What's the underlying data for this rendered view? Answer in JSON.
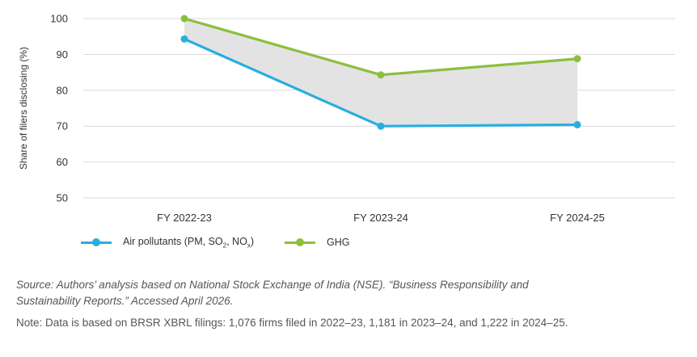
{
  "chart_data": {
    "type": "line",
    "categories": [
      "FY 2022-23",
      "FY 2023-24",
      "FY 2024-25"
    ],
    "series": [
      {
        "name": "Air pollutants (PM, SO2, NOx)",
        "values": [
          94.3,
          70.0,
          70.4
        ],
        "color": "#29aee0"
      },
      {
        "name": "GHG",
        "values": [
          100.0,
          84.3,
          88.8
        ],
        "color": "#8cbf3f"
      }
    ],
    "ylabel": "Share of filers disclosing (%)",
    "xlabel": "",
    "ylim": [
      50,
      100
    ],
    "yticks": [
      "50",
      "60",
      "70",
      "80",
      "90",
      "100"
    ],
    "grid": true,
    "shaded_between_series": true,
    "fill_color": "#e3e3e3",
    "legend_position": "bottom-left"
  },
  "legend": {
    "air": {
      "prefix": "Air pollutants (PM, SO",
      "sub1": "2",
      "mid": ", NO",
      "sub2": "x",
      "suffix": ")"
    },
    "ghg": "GHG"
  },
  "source": "Source: Authors’ analysis based on National Stock Exchange of India (NSE). “Business Responsibility and Sustainability Reports.” Accessed April 2026.",
  "note": "Note: Data is based on BRSR XBRL filings: 1,076 firms filed in 2022–23, 1,181 in 2023–24, and 1,222 in 2024–25."
}
